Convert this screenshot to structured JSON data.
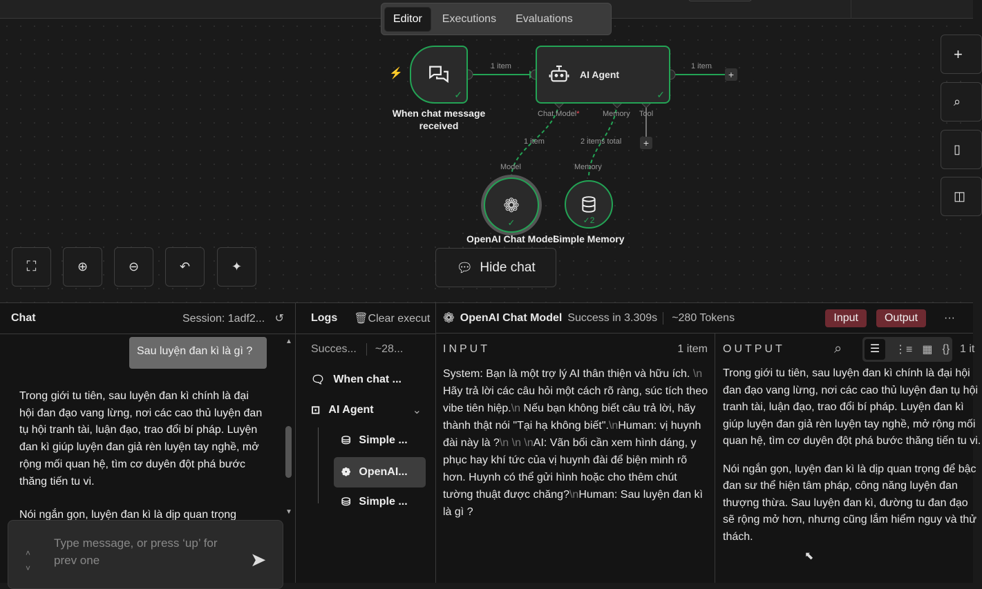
{
  "tabs": [
    {
      "label": "Editor",
      "active": true
    },
    {
      "label": "Executions"
    },
    {
      "label": "Evaluations"
    }
  ],
  "workflow": {
    "trigger": {
      "label": "When chat message received"
    },
    "agent": {
      "label": "AI Agent",
      "ports": {
        "chat_model": "Chat Model",
        "required_mark": "*",
        "memory": "Memory",
        "tool": "Tool"
      }
    },
    "edges": {
      "trigger_to_agent": "1 item",
      "agent_out": "1 item",
      "model_edge": "1 item",
      "memory_edge": "2 items total"
    },
    "model": {
      "label": "OpenAI Chat Model",
      "port": "Model"
    },
    "memory": {
      "label": "Simple Memory",
      "port": "Memory",
      "run_count": "2"
    },
    "accent": "#23a455"
  },
  "canvas_controls": {
    "hide_chat": "Hide chat"
  },
  "chat": {
    "title": "Chat",
    "session": "Session: 1adf2...",
    "user_message": "Sau luyện đan kì là gì ?",
    "bot_message": "Trong giới tu tiên, sau luyện đan kì chính là đại hội đan đạo vang lừng, nơi các cao thủ luyện đan tụ hội tranh tài, luận đạo, trao đổi bí pháp. Luyện đan kì giúp luyện đan giả rèn luyện tay nghề, mở rộng mối quan hệ, tìm cơ duyên đột phá bước thăng tiến tu vi.",
    "bot_message_2": "Nói ngắn gọn, luyện đan kì là dịp quan trọng",
    "input_placeholder": "Type message, or press ‘up’ for prev one"
  },
  "logs": {
    "title": "Logs",
    "clear": "Clear execut",
    "status": "Succes...",
    "tokens": "~28...",
    "items": [
      {
        "label": "When chat ...",
        "icon": "chat-icon"
      },
      {
        "label": "AI Agent",
        "icon": "robot-icon"
      },
      {
        "label": "Simple ...",
        "icon": "database-icon"
      },
      {
        "label": "OpenAI...",
        "icon": "openai-icon",
        "selected": true
      },
      {
        "label": "Simple ...",
        "icon": "database-icon"
      }
    ]
  },
  "run": {
    "node": "OpenAI Chat Model",
    "status": "Success in 3.309s",
    "tokens": "~280 Tokens",
    "input_btn": "Input",
    "output_btn": "Output",
    "badge_color": "#6e2a31"
  },
  "input": {
    "title": "INPUT",
    "count": "1 item",
    "parts": [
      "System: Bạn là một trợ lý AI thân thiện và hữu ích. ",
      "\\n",
      " Hãy trả lời các câu hỏi một cách rõ ràng, súc tích theo vibe tiên hiệp.",
      "\\n",
      " Nếu bạn không biết câu trả lời, hãy thành thật nói \"Tại hạ không biết\".",
      "\\n",
      "Human: vị huynh đài này là ?",
      "\\n \\n \\n",
      "AI: Vãn bối cần xem hình dáng, y phục hay khí tức của vị huynh đài để biện minh rõ hơn. Huynh có thể gửi hình hoặc cho thêm chút tường thuật được chăng?",
      "\\n",
      "Human: Sau luyện đan kì là gì ?"
    ]
  },
  "output": {
    "title": "OUTPUT",
    "count": "1 it",
    "p1": "Trong giới tu tiên, sau luyện đan kì chính là đại hội đan đạo vang lừng, nơi các cao thủ luyện đan tụ hội tranh tài, luận đạo, trao đổi bí pháp. Luyện đan kì giúp luyện đan giả rèn luyện tay nghề, mở rộng mối quan hệ, tìm cơ duyên đột phá bước thăng tiến tu vi.",
    "p2": "Nói ngắn gọn, luyện đan kì là dịp quan trọng để bậc đan sư thể hiện tâm pháp, công năng luyện đan thượng thừa. Sau luyện đan kì, đường tu đan đạo sẽ rộng mở hơn, nhưng cũng lắm hiểm nguy và thử thách."
  }
}
